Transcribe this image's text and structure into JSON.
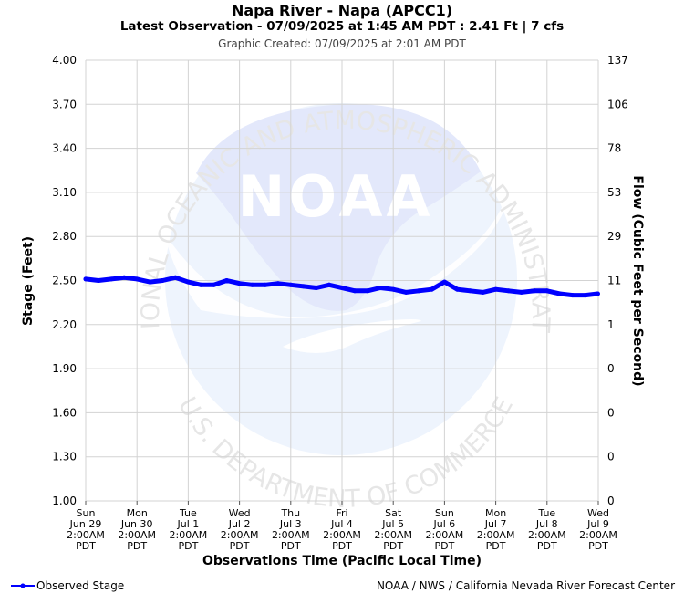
{
  "header": {
    "title": "Napa River - Napa (APCC1)",
    "subtitle": "Latest Observation - 07/09/2025 at 1:45 AM PDT : 2.41 Ft | 7 cfs",
    "created": "Graphic Created: 07/09/2025 at 2:01 AM PDT"
  },
  "watermark": {
    "logo_text": "NOAA",
    "arc_top": "NATIONAL OCEANIC AND ATMOSPHERIC ADMINISTRATION",
    "arc_bottom": "U.S. DEPARTMENT OF COMMERCE"
  },
  "footer": {
    "legend_label": "Observed Stage",
    "credit": "NOAA / NWS / California Nevada River Forecast Center"
  },
  "colors": {
    "series": "#0000ff",
    "grid": "#d3d3d3"
  },
  "chart_data": {
    "type": "line",
    "title": "Napa River - Napa (APCC1)",
    "xlabel": "Observations Time (Pacific Local Time)",
    "ylabel": "Stage (Feet)",
    "ylabel_right": "Flow (Cubic Feet per Second)",
    "ylim": [
      1.0,
      4.0
    ],
    "grid": true,
    "legend": "bottom-left",
    "y_ticks": [
      "4.00",
      "3.70",
      "3.40",
      "3.10",
      "2.80",
      "2.50",
      "2.20",
      "1.90",
      "1.60",
      "1.30",
      "1.00"
    ],
    "y_right_ticks": [
      "137",
      "106",
      "78",
      "53",
      "29",
      "11",
      "1",
      "0",
      "0",
      "0",
      "0"
    ],
    "x_ticks": [
      [
        "Sun",
        "Jun 29",
        "2:00AM",
        "PDT"
      ],
      [
        "Mon",
        "Jun 30",
        "2:00AM",
        "PDT"
      ],
      [
        "Tue",
        "Jul 1",
        "2:00AM",
        "PDT"
      ],
      [
        "Wed",
        "Jul 2",
        "2:00AM",
        "PDT"
      ],
      [
        "Thu",
        "Jul 3",
        "2:00AM",
        "PDT"
      ],
      [
        "Fri",
        "Jul 4",
        "2:00AM",
        "PDT"
      ],
      [
        "Sat",
        "Jul 5",
        "2:00AM",
        "PDT"
      ],
      [
        "Sun",
        "Jul 6",
        "2:00AM",
        "PDT"
      ],
      [
        "Mon",
        "Jul 7",
        "2:00AM",
        "PDT"
      ],
      [
        "Tue",
        "Jul 8",
        "2:00AM",
        "PDT"
      ],
      [
        "Wed",
        "Jul 9",
        "2:00AM",
        "PDT"
      ]
    ],
    "series": [
      {
        "name": "Observed Stage",
        "x": [
          "2025-06-29 02:00",
          "2025-06-29 08:00",
          "2025-06-29 14:00",
          "2025-06-29 20:00",
          "2025-06-30 02:00",
          "2025-06-30 08:00",
          "2025-06-30 14:00",
          "2025-06-30 20:00",
          "2025-07-01 02:00",
          "2025-07-01 08:00",
          "2025-07-01 14:00",
          "2025-07-01 20:00",
          "2025-07-02 02:00",
          "2025-07-02 08:00",
          "2025-07-02 14:00",
          "2025-07-02 20:00",
          "2025-07-03 02:00",
          "2025-07-03 08:00",
          "2025-07-03 14:00",
          "2025-07-03 20:00",
          "2025-07-04 02:00",
          "2025-07-04 08:00",
          "2025-07-04 14:00",
          "2025-07-04 20:00",
          "2025-07-05 02:00",
          "2025-07-05 08:00",
          "2025-07-05 14:00",
          "2025-07-05 20:00",
          "2025-07-06 02:00",
          "2025-07-06 08:00",
          "2025-07-06 14:00",
          "2025-07-06 20:00",
          "2025-07-07 02:00",
          "2025-07-07 08:00",
          "2025-07-07 14:00",
          "2025-07-07 20:00",
          "2025-07-08 02:00",
          "2025-07-08 08:00",
          "2025-07-08 14:00",
          "2025-07-08 20:00",
          "2025-07-09 01:45"
        ],
        "values": [
          2.51,
          2.5,
          2.51,
          2.52,
          2.51,
          2.49,
          2.5,
          2.52,
          2.49,
          2.47,
          2.47,
          2.5,
          2.48,
          2.47,
          2.47,
          2.48,
          2.47,
          2.46,
          2.45,
          2.47,
          2.45,
          2.43,
          2.43,
          2.45,
          2.44,
          2.42,
          2.43,
          2.44,
          2.49,
          2.44,
          2.43,
          2.42,
          2.44,
          2.43,
          2.42,
          2.43,
          2.43,
          2.41,
          2.4,
          2.4,
          2.41
        ]
      }
    ]
  }
}
